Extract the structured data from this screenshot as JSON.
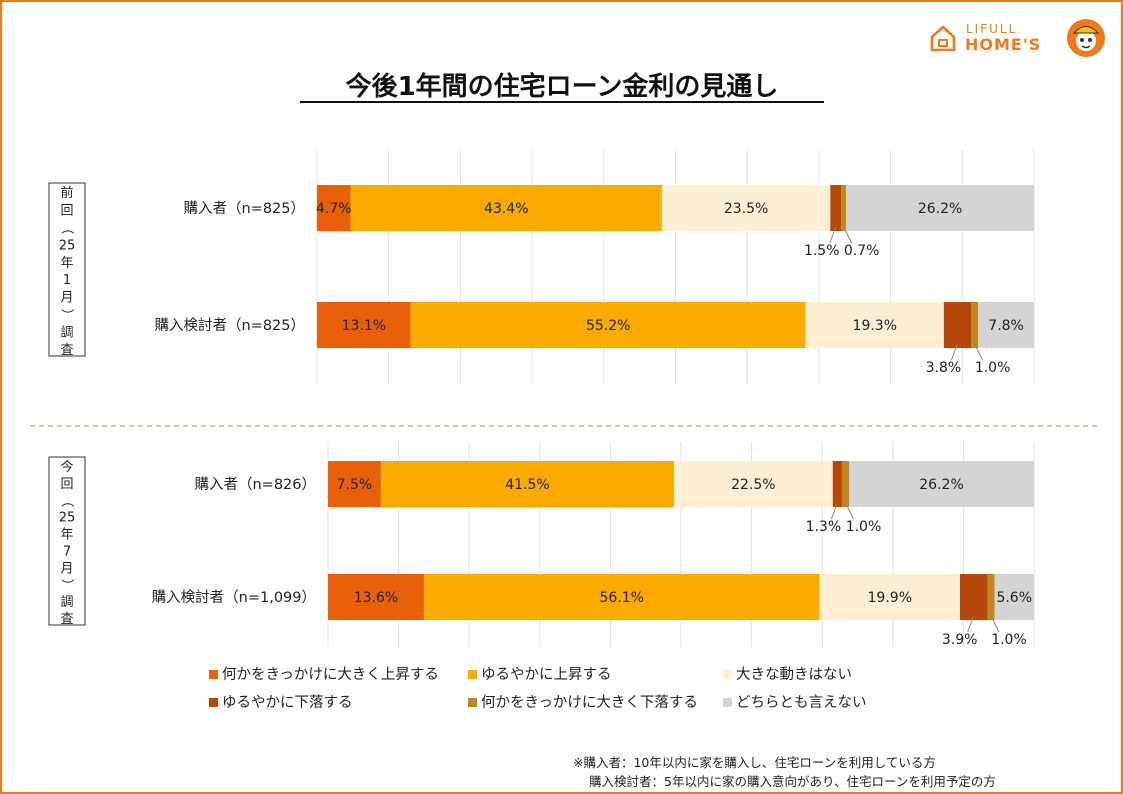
{
  "brand": {
    "logo_line1": "LIFULL",
    "logo_line2": "HOME'S"
  },
  "colors": {
    "sharp_rise": "#e8600a",
    "gradual_rise": "#fbaa00",
    "no_change": "#fdefd4",
    "gradual_fall": "#b5480a",
    "sharp_fall": "#c4861b",
    "undecided": "#d4d4d4",
    "frame": "#f07a1a"
  },
  "chart_data": {
    "type": "bar",
    "orientation": "horizontal-stacked-100",
    "title": "今後1年間の住宅ローン金利の見通し",
    "xlim": [
      0,
      100
    ],
    "grid": true,
    "legend_position": "bottom",
    "groups": [
      {
        "label_chars": [
          "前",
          "回",
          "（",
          "25",
          "年",
          "1",
          "月",
          "）",
          "調",
          "査"
        ],
        "rows": [
          {
            "label": "購入者（n=825）",
            "values": [
              4.7,
              43.4,
              23.5,
              1.5,
              0.7,
              26.2
            ]
          },
          {
            "label": "購入検討者（n=825）",
            "values": [
              13.1,
              55.2,
              19.3,
              3.8,
              1.0,
              7.8
            ]
          }
        ]
      },
      {
        "label_chars": [
          "今",
          "回",
          "（",
          "25",
          "年",
          "7",
          "月",
          "）",
          "調",
          "査"
        ],
        "rows": [
          {
            "label": "購入者（n=826）",
            "values": [
              7.5,
              41.5,
              22.5,
              1.3,
              1.0,
              26.2
            ]
          },
          {
            "label": "購入検討者（n=1,099）",
            "values": [
              13.6,
              56.1,
              19.9,
              3.9,
              1.0,
              5.6
            ]
          }
        ]
      }
    ],
    "series": [
      {
        "name": "何かをきっかけに大きく上昇する"
      },
      {
        "name": "ゆるやかに上昇する"
      },
      {
        "name": "大きな動きはない"
      },
      {
        "name": "ゆるやかに下落する"
      },
      {
        "name": "何かをきっかけに大きく下落する"
      },
      {
        "name": "どちらとも言えない"
      }
    ]
  },
  "footnotes": [
    "※購入者：10年以内に家を購入し、住宅ローンを利用している方",
    "購入検討者：5年以内に家の購入意向があり、住宅ローンを利用予定の方"
  ]
}
